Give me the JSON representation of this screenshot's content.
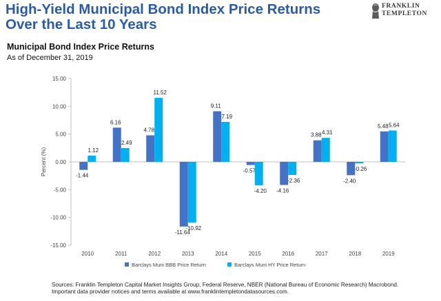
{
  "header": {
    "title_line1": "High-Yield Municipal Bond Index Price Returns",
    "title_line2": "Over the Last 10 Years",
    "logo_line1": "FRANKLIN",
    "logo_line2": "TEMPLETON"
  },
  "chart_header": {
    "subtitle": "Municipal Bond Index Price Returns",
    "as_of": "As of December 31, 2019"
  },
  "footer": {
    "sources_line1": "Sources: Franklin Templeton Capital Market Insights Group, Federal Reserve, NBER (National Bureau of Economic Research) Macrobond.",
    "sources_line2": "Important data provider notices and terms available at www.franklintempletondatasources.com."
  },
  "colors": {
    "title": "#2a5ba8",
    "bbb_series": "#4472c4",
    "hy_series": "#00b0f0",
    "axis_text": "#444444"
  },
  "chart_data": {
    "type": "bar",
    "categories": [
      "2010",
      "2011",
      "2012",
      "2013",
      "2014",
      "2015",
      "2016",
      "2017",
      "2018",
      "2019"
    ],
    "series": [
      {
        "name": "Barclays Muni BBB Price Return",
        "color": "#4472c4",
        "values": [
          -1.44,
          6.16,
          4.78,
          -11.64,
          9.11,
          -0.57,
          -4.16,
          3.88,
          -2.4,
          5.48
        ],
        "labels": [
          "-1.44",
          "6.16",
          "4.78",
          "-11.64",
          "9.11",
          "-0.57",
          "-4.16",
          "3.88",
          "-2.40",
          "5.48"
        ]
      },
      {
        "name": "Barclays Muni HY Price Return",
        "color": "#00b0f0",
        "values": [
          1.12,
          2.49,
          11.52,
          -10.92,
          7.19,
          -4.2,
          -2.36,
          4.31,
          -0.26,
          5.64
        ],
        "labels": [
          "1.12",
          "2.49",
          "11.52",
          "-10.92",
          "7.19",
          "-4.20",
          "-2.36",
          "4.31",
          "-0.26",
          "5.64"
        ]
      }
    ],
    "ylabel": "Percent (%)",
    "ylim": [
      -15,
      15
    ],
    "yticks": [
      15,
      10,
      5,
      0,
      -5,
      -10,
      -15
    ],
    "ytick_labels": [
      "15.00",
      "10.00",
      "5.00",
      "0.00",
      "-5.00",
      "-10.00",
      "-15.00"
    ],
    "grid": false,
    "legend": "bottom"
  }
}
